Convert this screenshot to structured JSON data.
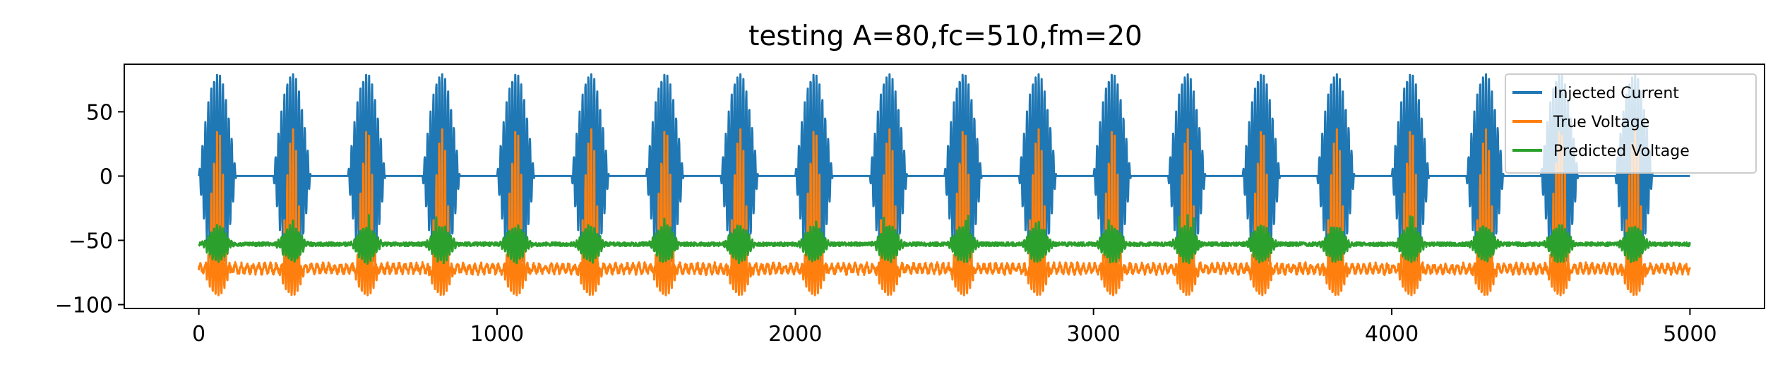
{
  "chart_data": {
    "type": "line",
    "title": "testing A=80,fc=510,fm=20",
    "xlabel": "",
    "ylabel": "",
    "xlim": [
      -250,
      5250
    ],
    "ylim": [
      -103,
      87
    ],
    "x_ticks": [
      0,
      1000,
      2000,
      3000,
      4000,
      5000
    ],
    "x_tick_labels": [
      "0",
      "1000",
      "2000",
      "3000",
      "4000",
      "5000"
    ],
    "y_ticks": [
      50,
      0,
      -50,
      -100
    ],
    "y_tick_labels": [
      "50",
      "0",
      "−50",
      "−100"
    ],
    "grid": false,
    "legend_position": "upper right",
    "x_range": [
      0,
      5000
    ],
    "n_points": 5001,
    "series": [
      {
        "name": "Injected Current",
        "color": "#1f77b4",
        "description": "AM signal y = A*max(0,sin(2*pi*fm*t)) * sin(2*pi*fc*t), t = x/5000",
        "amplitude": 80,
        "carrier_freq": 510,
        "modulation_freq": 20
      },
      {
        "name": "True Voltage",
        "color": "#ff7f0e",
        "baseline": -72,
        "peak_max": 40,
        "trough_min": -93
      },
      {
        "name": "Predicted Voltage",
        "color": "#2ca02c",
        "baseline": -53,
        "peak_max": -30,
        "trough_min": -75
      }
    ]
  }
}
